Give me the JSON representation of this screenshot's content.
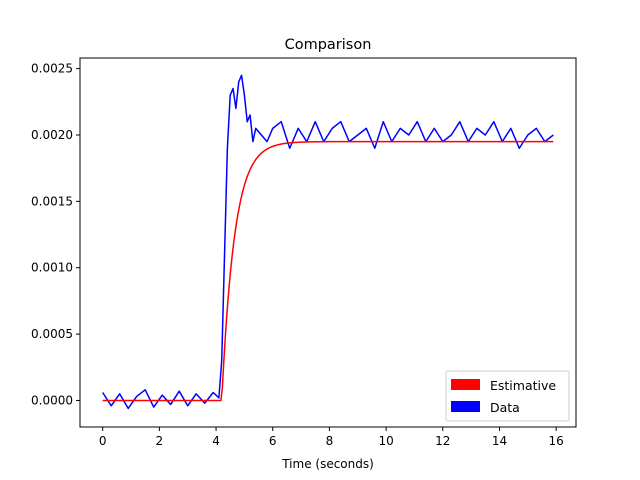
{
  "chart_data": {
    "type": "line",
    "title": "Comparison",
    "xlabel": "Time (seconds)",
    "ylabel": "",
    "xlim": [
      -0.8,
      16.7
    ],
    "ylim": [
      -0.0002,
      0.00258
    ],
    "xticks": [
      0,
      2,
      4,
      6,
      8,
      10,
      12,
      14,
      16
    ],
    "xtick_labels": [
      "0",
      "2",
      "4",
      "6",
      "8",
      "10",
      "12",
      "14",
      "16"
    ],
    "yticks": [
      0.0,
      0.0005,
      0.001,
      0.0015,
      0.002,
      0.0025
    ],
    "ytick_labels": [
      "0.0000",
      "0.0005",
      "0.0010",
      "0.0015",
      "0.0020",
      "0.0025"
    ],
    "grid": false,
    "legend_position": "lower-right",
    "series": [
      {
        "name": "Estimative",
        "color": "#ff0000",
        "kind": "first-order-step",
        "x_start": 0,
        "x_end": 15.9,
        "step_time": 4.2,
        "time_constant": 0.45,
        "baseline": 0.0,
        "final_value": 0.00195
      },
      {
        "name": "Data",
        "color": "#0000ff",
        "x": [
          0,
          0.3,
          0.6,
          0.9,
          1.2,
          1.5,
          1.8,
          2.1,
          2.4,
          2.7,
          3.0,
          3.3,
          3.6,
          3.9,
          4.1,
          4.2,
          4.3,
          4.4,
          4.5,
          4.6,
          4.7,
          4.8,
          4.9,
          5.0,
          5.1,
          5.2,
          5.3,
          5.4,
          5.6,
          5.8,
          6.0,
          6.3,
          6.6,
          6.9,
          7.2,
          7.5,
          7.8,
          8.1,
          8.4,
          8.7,
          9.0,
          9.3,
          9.6,
          9.9,
          10.2,
          10.5,
          10.8,
          11.1,
          11.4,
          11.7,
          12.0,
          12.3,
          12.6,
          12.9,
          13.2,
          13.5,
          13.8,
          14.1,
          14.4,
          14.7,
          15.0,
          15.3,
          15.6,
          15.9
        ],
        "y": [
          6e-05,
          -4e-05,
          5e-05,
          -6e-05,
          3e-05,
          8e-05,
          -5e-05,
          4e-05,
          -3e-05,
          7e-05,
          -4e-05,
          5e-05,
          -2e-05,
          6e-05,
          2e-05,
          0.0003,
          0.0011,
          0.0019,
          0.0023,
          0.00235,
          0.0022,
          0.0024,
          0.00245,
          0.0023,
          0.0021,
          0.00215,
          0.00195,
          0.00205,
          0.002,
          0.00195,
          0.00205,
          0.0021,
          0.0019,
          0.00205,
          0.00195,
          0.0021,
          0.00195,
          0.00205,
          0.0021,
          0.00195,
          0.002,
          0.00205,
          0.0019,
          0.0021,
          0.00195,
          0.00205,
          0.002,
          0.0021,
          0.00195,
          0.00205,
          0.00195,
          0.002,
          0.0021,
          0.00195,
          0.00205,
          0.002,
          0.0021,
          0.00195,
          0.00205,
          0.0019,
          0.002,
          0.00205,
          0.00195,
          0.002
        ]
      }
    ]
  }
}
